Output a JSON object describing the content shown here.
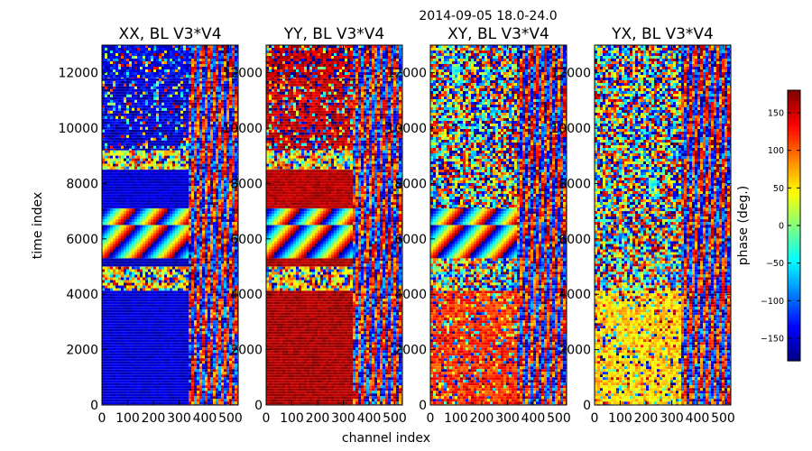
{
  "suptitle": "2014-09-05 18.0-24.0",
  "xlabel": "channel index",
  "ylabel": "time index",
  "colorbar": {
    "label": "phase (deg.)",
    "range": [
      -180,
      180
    ],
    "ticks": [
      150,
      100,
      50,
      0,
      -50,
      -100,
      -150
    ],
    "tick_labels": [
      "150",
      "100",
      "50",
      "0",
      "−50",
      "−100",
      "−150"
    ],
    "colormap": "jet"
  },
  "chart_data": [
    {
      "type": "heatmap",
      "title": "XX, BL V3*V4",
      "xlim": [
        0,
        530
      ],
      "ylim": [
        0,
        13000
      ],
      "xticks": [
        0,
        100,
        200,
        300,
        400,
        500
      ],
      "xtick_labels": [
        "0",
        "100",
        "200",
        "300",
        "400",
        "500"
      ],
      "yticks": [
        0,
        2000,
        4000,
        6000,
        8000,
        10000,
        12000
      ],
      "ytick_labels": [
        "0",
        "2000",
        "4000",
        "6000",
        "8000",
        "10000",
        "12000"
      ],
      "bands": [
        {
          "t": [
            0,
            4130
          ],
          "phase": -150,
          "noise": "low"
        },
        {
          "t": [
            4130,
            5000
          ],
          "phase": 60,
          "noise": "high"
        },
        {
          "t": [
            5000,
            5300
          ],
          "phase": -160,
          "noise": "low"
        },
        {
          "t": [
            5300,
            6500
          ],
          "phase": 40,
          "noise": "fringe"
        },
        {
          "t": [
            6500,
            7100
          ],
          "phase": 0,
          "noise": "fringe"
        },
        {
          "t": [
            7100,
            8500
          ],
          "phase": -150,
          "noise": "low"
        },
        {
          "t": [
            8500,
            9200
          ],
          "phase": 40,
          "noise": "high"
        },
        {
          "t": [
            9200,
            11800
          ],
          "phase": -150,
          "noise": "medium"
        },
        {
          "t": [
            11800,
            13000
          ],
          "phase": -140,
          "noise": "medium"
        }
      ],
      "fringe_channel_start": 335
    },
    {
      "type": "heatmap",
      "title": "YY, BL V3*V4",
      "xlim": [
        0,
        530
      ],
      "ylim": [
        0,
        13000
      ],
      "xticks": [
        0,
        100,
        200,
        300,
        400,
        500
      ],
      "xtick_labels": [
        "0",
        "100",
        "200",
        "300",
        "400",
        "500"
      ],
      "yticks": [
        0,
        2000,
        4000,
        6000,
        8000,
        10000,
        12000
      ],
      "ytick_labels": [
        "0",
        "2000",
        "4000",
        "6000",
        "8000",
        "10000",
        "12000"
      ],
      "bands": [
        {
          "t": [
            0,
            4130
          ],
          "phase": 165,
          "noise": "low"
        },
        {
          "t": [
            4130,
            5000
          ],
          "phase": 60,
          "noise": "high"
        },
        {
          "t": [
            5000,
            5300
          ],
          "phase": 165,
          "noise": "low"
        },
        {
          "t": [
            5300,
            6500
          ],
          "phase": 40,
          "noise": "fringe"
        },
        {
          "t": [
            6500,
            7100
          ],
          "phase": 0,
          "noise": "fringe"
        },
        {
          "t": [
            7100,
            8500
          ],
          "phase": 160,
          "noise": "low"
        },
        {
          "t": [
            8500,
            9200
          ],
          "phase": 60,
          "noise": "high"
        },
        {
          "t": [
            9200,
            11800
          ],
          "phase": 160,
          "noise": "medium"
        },
        {
          "t": [
            11800,
            13000
          ],
          "phase": 160,
          "noise": "medium"
        }
      ],
      "fringe_channel_start": 335
    },
    {
      "type": "heatmap",
      "title": "XY, BL V3*V4",
      "xlim": [
        0,
        530
      ],
      "ylim": [
        0,
        13000
      ],
      "xticks": [
        0,
        100,
        200,
        300,
        400,
        500
      ],
      "xtick_labels": [
        "0",
        "100",
        "200",
        "300",
        "400",
        "500"
      ],
      "yticks": [
        0,
        2000,
        4000,
        6000,
        8000,
        10000,
        12000
      ],
      "ytick_labels": [
        "0",
        "2000",
        "4000",
        "6000",
        "8000",
        "10000",
        "12000"
      ],
      "bands": [
        {
          "t": [
            0,
            4130
          ],
          "phase": 120,
          "noise": "medium"
        },
        {
          "t": [
            4130,
            5300
          ],
          "phase": 0,
          "noise": "random"
        },
        {
          "t": [
            5300,
            6500
          ],
          "phase": 0,
          "noise": "fringe"
        },
        {
          "t": [
            6500,
            7100
          ],
          "phase": 0,
          "noise": "fringe"
        },
        {
          "t": [
            7100,
            13000
          ],
          "phase": 0,
          "noise": "random"
        }
      ],
      "fringe_channel_start": 335
    },
    {
      "type": "heatmap",
      "title": "YX, BL V3*V4",
      "xlim": [
        0,
        530
      ],
      "ylim": [
        0,
        13000
      ],
      "xticks": [
        0,
        100,
        200,
        300,
        400,
        500
      ],
      "xtick_labels": [
        "0",
        "100",
        "200",
        "300",
        "400",
        "500"
      ],
      "yticks": [
        0,
        2000,
        4000,
        6000,
        8000,
        10000,
        12000
      ],
      "ytick_labels": [
        "0",
        "2000",
        "4000",
        "6000",
        "8000",
        "10000",
        "12000"
      ],
      "bands": [
        {
          "t": [
            0,
            4130
          ],
          "phase": 60,
          "noise": "medium"
        },
        {
          "t": [
            4130,
            5300
          ],
          "phase": 0,
          "noise": "random"
        },
        {
          "t": [
            5300,
            6500
          ],
          "phase": 0,
          "noise": "random"
        },
        {
          "t": [
            6500,
            7100
          ],
          "phase": 0,
          "noise": "random"
        },
        {
          "t": [
            7100,
            13000
          ],
          "phase": 0,
          "noise": "random"
        }
      ],
      "fringe_channel_start": 335
    }
  ]
}
